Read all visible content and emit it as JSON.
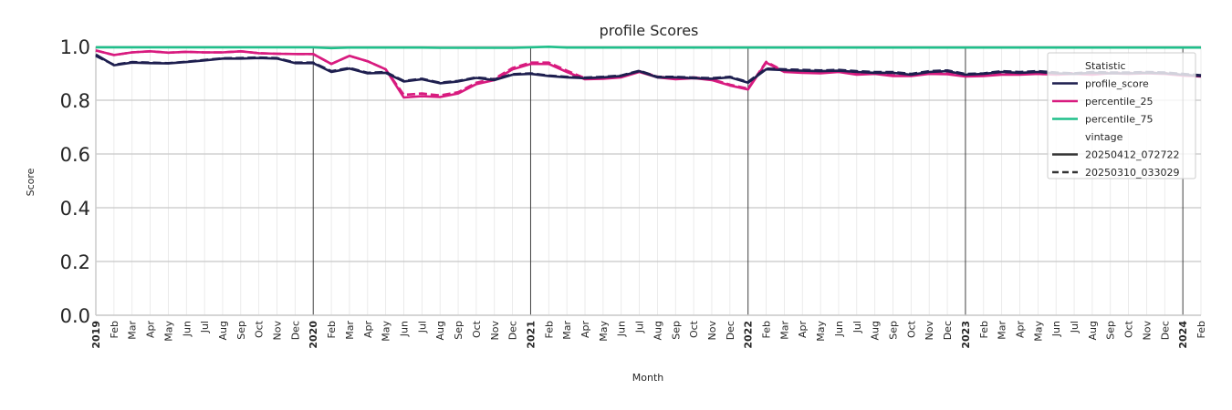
{
  "chart_data": {
    "type": "line",
    "title": "profile Scores",
    "xlabel": "Month",
    "ylabel": "Score",
    "ylim": [
      0.0,
      1.0
    ],
    "yticks": [
      "0.0",
      "0.2",
      "0.4",
      "0.6",
      "0.8",
      "1.0"
    ],
    "x_start": "2019-01",
    "months": 62,
    "month_labels": [
      "Feb",
      "Mar",
      "Apr",
      "May",
      "Jun",
      "Jul",
      "Aug",
      "Sep",
      "Oct",
      "Nov",
      "Dec"
    ],
    "year_labels": [
      "2019",
      "2020",
      "2021",
      "2022",
      "2023",
      "2024"
    ],
    "grid": true,
    "legend": {
      "position": "top-right",
      "statistic_title": "Statistic",
      "vintage_title": "vintage",
      "statistic_entries": [
        "profile_score",
        "percentile_25",
        "percentile_75"
      ],
      "vintage_entries": [
        "20250412_072722",
        "20250310_033029"
      ]
    },
    "colors": {
      "profile_score": "#1e1f4f",
      "percentile_25": "#d81b7f",
      "percentile_75": "#1fbf8a",
      "vintage_legend": "#333333"
    },
    "series": [
      {
        "name": "profile_score",
        "vintage": "20250412_072722",
        "style": "solid",
        "values": [
          0.97,
          0.93,
          0.94,
          0.938,
          0.937,
          0.942,
          0.948,
          0.955,
          0.955,
          0.957,
          0.955,
          0.938,
          0.938,
          0.905,
          0.918,
          0.9,
          0.902,
          0.87,
          0.878,
          0.863,
          0.87,
          0.883,
          0.875,
          0.895,
          0.898,
          0.89,
          0.885,
          0.882,
          0.885,
          0.89,
          0.908,
          0.885,
          0.885,
          0.882,
          0.88,
          0.885,
          0.865,
          0.915,
          0.912,
          0.91,
          0.908,
          0.91,
          0.905,
          0.902,
          0.902,
          0.895,
          0.905,
          0.908,
          0.895,
          0.898,
          0.905,
          0.902,
          0.905,
          0.9,
          0.898,
          0.902,
          0.9,
          0.9,
          0.902,
          0.9,
          0.895,
          0.89
        ]
      },
      {
        "name": "profile_score",
        "vintage": "20250310_033029",
        "style": "dashed",
        "values": [
          0.965,
          0.932,
          0.942,
          0.94,
          0.938,
          0.943,
          0.95,
          0.956,
          0.957,
          0.959,
          0.957,
          0.94,
          0.94,
          0.908,
          0.92,
          0.902,
          0.905,
          0.872,
          0.88,
          0.865,
          0.872,
          0.885,
          0.878,
          0.897,
          0.9,
          0.892,
          0.887,
          0.884,
          0.887,
          0.892,
          0.91,
          0.887,
          0.887,
          0.884,
          0.882,
          0.887,
          0.868,
          0.918,
          0.915,
          0.913,
          0.911,
          0.913,
          0.908,
          0.905,
          0.905,
          0.898,
          0.908,
          0.911,
          0.898,
          0.9,
          0.908,
          0.905,
          0.908,
          0.903,
          0.9,
          0.905,
          0.903,
          0.903,
          0.905,
          0.903,
          0.898,
          0.893
        ]
      },
      {
        "name": "percentile_25",
        "vintage": "20250412_072722",
        "style": "solid",
        "values": [
          0.985,
          0.968,
          0.978,
          0.982,
          0.977,
          0.98,
          0.978,
          0.978,
          0.982,
          0.975,
          0.973,
          0.972,
          0.972,
          0.935,
          0.965,
          0.945,
          0.915,
          0.81,
          0.815,
          0.812,
          0.825,
          0.86,
          0.875,
          0.915,
          0.935,
          0.935,
          0.905,
          0.878,
          0.88,
          0.885,
          0.905,
          0.885,
          0.878,
          0.882,
          0.875,
          0.855,
          0.84,
          0.94,
          0.905,
          0.902,
          0.9,
          0.905,
          0.895,
          0.898,
          0.89,
          0.89,
          0.898,
          0.897,
          0.888,
          0.89,
          0.895,
          0.895,
          0.898,
          0.895,
          0.898,
          0.895,
          0.9,
          0.898,
          0.9,
          0.898,
          0.892,
          0.888
        ]
      },
      {
        "name": "percentile_25",
        "vintage": "20250310_033029",
        "style": "dashed",
        "values": [
          0.985,
          0.968,
          0.978,
          0.982,
          0.977,
          0.98,
          0.978,
          0.978,
          0.982,
          0.975,
          0.973,
          0.972,
          0.972,
          0.935,
          0.965,
          0.945,
          0.915,
          0.82,
          0.825,
          0.818,
          0.83,
          0.865,
          0.88,
          0.92,
          0.94,
          0.94,
          0.91,
          0.882,
          0.884,
          0.888,
          0.908,
          0.888,
          0.881,
          0.885,
          0.878,
          0.858,
          0.843,
          0.943,
          0.908,
          0.905,
          0.903,
          0.908,
          0.898,
          0.901,
          0.893,
          0.893,
          0.901,
          0.9,
          0.891,
          0.893,
          0.898,
          0.898,
          0.901,
          0.898,
          0.901,
          0.898,
          0.903,
          0.901,
          0.903,
          0.901,
          0.895,
          0.891
        ]
      },
      {
        "name": "percentile_75",
        "vintage": "20250412_072722",
        "style": "solid",
        "values": [
          0.997,
          0.997,
          0.997,
          0.997,
          0.997,
          0.997,
          0.997,
          0.997,
          0.997,
          0.997,
          0.997,
          0.997,
          0.997,
          0.994,
          0.996,
          0.996,
          0.996,
          0.996,
          0.996,
          0.995,
          0.995,
          0.995,
          0.995,
          0.995,
          0.997,
          0.999,
          0.996,
          0.996,
          0.996,
          0.996,
          0.996,
          0.996,
          0.996,
          0.996,
          0.996,
          0.996,
          0.996,
          0.996,
          0.996,
          0.996,
          0.996,
          0.996,
          0.996,
          0.996,
          0.996,
          0.996,
          0.996,
          0.996,
          0.996,
          0.996,
          0.996,
          0.996,
          0.996,
          0.996,
          0.996,
          0.996,
          0.996,
          0.996,
          0.996,
          0.996,
          0.996,
          0.996
        ]
      }
    ]
  }
}
